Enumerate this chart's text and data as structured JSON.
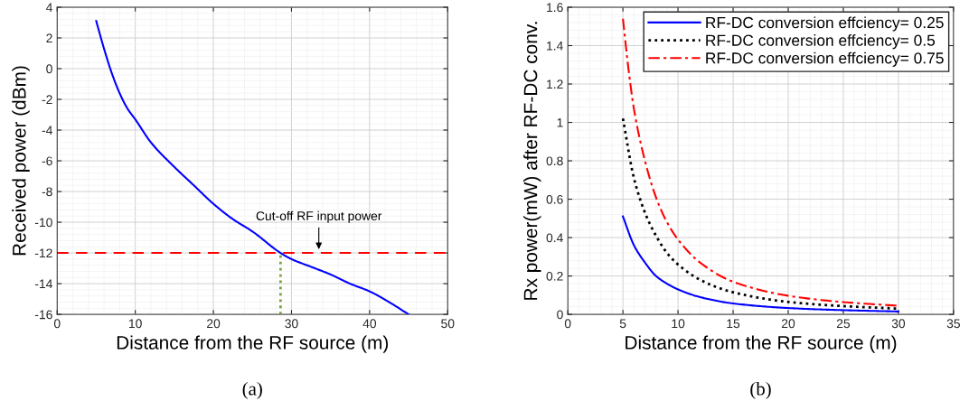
{
  "chart_data": [
    {
      "type": "line",
      "xlabel": "Distance from the RF source (m)",
      "ylabel": "Received power (dBm)",
      "xlim": [
        0,
        50
      ],
      "xticks": [
        0,
        10,
        20,
        30,
        40,
        50
      ],
      "ylim": [
        -16,
        4
      ],
      "yticks": [
        -16,
        -14,
        -12,
        -10,
        -8,
        -6,
        -4,
        -2,
        0,
        2,
        4
      ],
      "grid": true,
      "legend": false,
      "series": [
        {
          "color": "#0000ff",
          "line_style": "solid",
          "x": [
            5,
            6,
            7,
            8,
            9,
            10,
            12,
            15,
            17.5,
            20,
            22.5,
            25,
            28.6,
            30,
            32.5,
            35,
            37.5,
            40,
            42.5,
            45
          ],
          "values": [
            3.1,
            1.3,
            -0.3,
            -1.6,
            -2.6,
            -3.3,
            -4.8,
            -6.4,
            -7.6,
            -8.8,
            -9.8,
            -10.6,
            -12,
            -12.4,
            -12.9,
            -13.4,
            -14.0,
            -14.5,
            -15.2,
            -16
          ]
        },
        {
          "color": "#77a03c",
          "line_style": "dotted",
          "x": [
            28.6,
            28.6
          ],
          "values": [
            -16,
            -12
          ]
        }
      ],
      "ref_lines": [
        {
          "axis": "y",
          "value": -12,
          "color": "#ff0000",
          "line_style": "dashed"
        }
      ],
      "annotations": [
        {
          "text": "Cut-off RF input power",
          "x": 33.5,
          "y": -12
        },
        "(a)"
      ]
    },
    {
      "type": "line",
      "xlabel": "Distance from the RF source (m)",
      "ylabel": "Rx power(mW) after RF-DC conv.",
      "xlim": [
        0,
        35
      ],
      "xticks": [
        0,
        5,
        10,
        15,
        20,
        25,
        30,
        35
      ],
      "ylim": [
        0,
        1.6
      ],
      "yticks": [
        0,
        0.2,
        0.4,
        0.6,
        0.8,
        1,
        1.2,
        1.4,
        1.6
      ],
      "grid": true,
      "legend": "top right",
      "series": [
        {
          "name": "RF-DC conversion effciency= 0.25",
          "color": "#0000ff",
          "line_style": "solid",
          "x": [
            5,
            6,
            7,
            8,
            9,
            10,
            12,
            15,
            20,
            25,
            30
          ],
          "values": [
            0.51,
            0.36,
            0.27,
            0.2,
            0.16,
            0.13,
            0.09,
            0.057,
            0.033,
            0.022,
            0.015
          ]
        },
        {
          "name": "RF-DC conversion effciency= 0.5",
          "color": "#000000",
          "line_style": "dotted",
          "x": [
            5,
            6,
            7,
            8,
            9,
            10,
            12,
            15,
            20,
            25,
            30
          ],
          "values": [
            1.02,
            0.71,
            0.53,
            0.41,
            0.32,
            0.26,
            0.18,
            0.115,
            0.065,
            0.043,
            0.03
          ]
        },
        {
          "name": "RF-DC conversion effciency= 0.75",
          "color": "#ff0000",
          "line_style": "dashdot",
          "x": [
            5,
            5.5,
            6,
            7,
            8,
            9,
            10,
            12,
            15,
            20,
            25,
            30
          ],
          "values": [
            1.54,
            1.28,
            1.07,
            0.8,
            0.61,
            0.48,
            0.39,
            0.27,
            0.17,
            0.097,
            0.064,
            0.045
          ]
        }
      ],
      "annotations": [
        "(b)"
      ]
    }
  ]
}
